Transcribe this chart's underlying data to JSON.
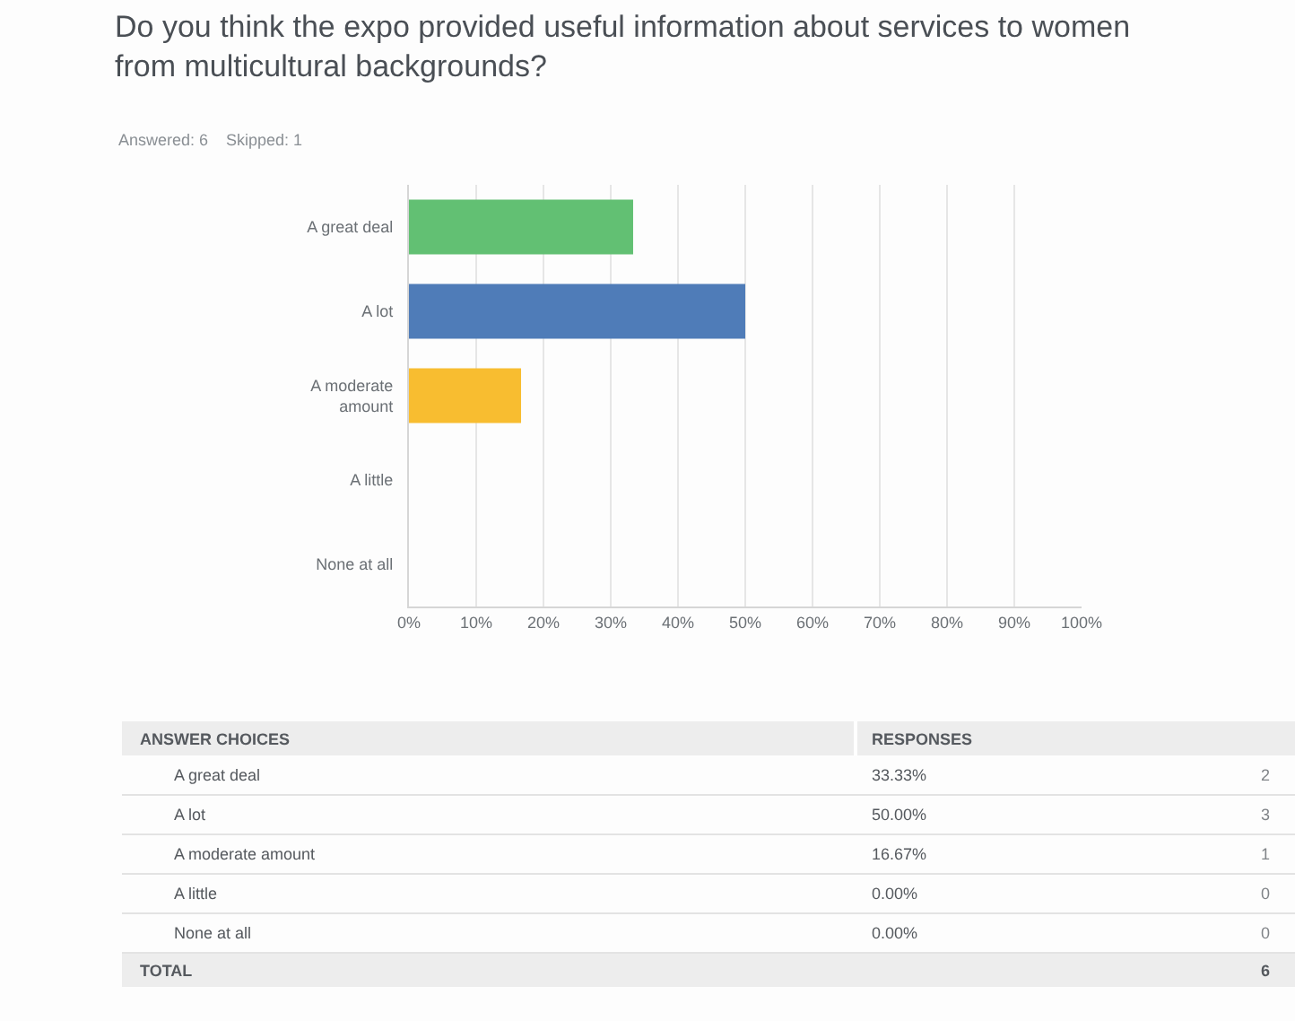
{
  "chart_data": {
    "type": "bar",
    "orientation": "horizontal",
    "title": "Do you think the expo provided useful information about services to women from multicultural backgrounds?",
    "subtitle": "Answered: 6    Skipped: 1",
    "categories": [
      "A great deal",
      "A lot",
      "A moderate amount",
      "A little",
      "None at all"
    ],
    "values": [
      33.33,
      50.0,
      16.67,
      0.0,
      0.0
    ],
    "colors": [
      "#62c073",
      "#4f7cb8",
      "#f8bd30",
      "#9e9e9e",
      "#9e9e9e"
    ],
    "xlim": [
      0,
      100
    ],
    "xticks": [
      {
        "value": 0,
        "label": "0%"
      },
      {
        "value": 10,
        "label": "10%"
      },
      {
        "value": 20,
        "label": "20%"
      },
      {
        "value": 30,
        "label": "30%"
      },
      {
        "value": 40,
        "label": "40%"
      },
      {
        "value": 50,
        "label": "50%"
      },
      {
        "value": 60,
        "label": "60%"
      },
      {
        "value": 70,
        "label": "70%"
      },
      {
        "value": 80,
        "label": "80%"
      },
      {
        "value": 90,
        "label": "90%"
      },
      {
        "value": 100,
        "label": "100%"
      }
    ],
    "grid": "x",
    "annotations": [
      "ANSWER CHOICES",
      "RESPONSES",
      "33.33%",
      "2",
      "50.00%",
      "3",
      "16.67%",
      "1",
      "0.00%",
      "0",
      "0.00%",
      "0",
      "TOTAL",
      "6"
    ]
  }
}
